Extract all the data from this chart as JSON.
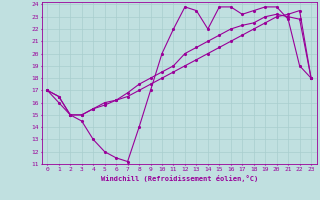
{
  "xlabel": "Windchill (Refroidissement éolien,°C)",
  "bg_color": "#c0e0e0",
  "line_color": "#990099",
  "grid_color": "#a8cece",
  "xlim": [
    -0.5,
    23.5
  ],
  "ylim": [
    11,
    24.2
  ],
  "xticks": [
    0,
    1,
    2,
    3,
    4,
    5,
    6,
    7,
    8,
    9,
    10,
    11,
    12,
    13,
    14,
    15,
    16,
    17,
    18,
    19,
    20,
    21,
    22,
    23
  ],
  "yticks": [
    11,
    12,
    13,
    14,
    15,
    16,
    17,
    18,
    19,
    20,
    21,
    22,
    23,
    24
  ],
  "line1_x": [
    0,
    1,
    2,
    3,
    4,
    5,
    6,
    7,
    8,
    9,
    10,
    11,
    12,
    13,
    14,
    15,
    16,
    17,
    18,
    19,
    20,
    21,
    22,
    23
  ],
  "line1_y": [
    17,
    16.5,
    15,
    14.5,
    13,
    12,
    11.5,
    11.2,
    14,
    17,
    20,
    22,
    23.8,
    23.5,
    22,
    23.8,
    23.8,
    23.2,
    23.5,
    23.8,
    23.8,
    22.8,
    19,
    18
  ],
  "line2_x": [
    0,
    1,
    2,
    3,
    4,
    5,
    6,
    7,
    8,
    9,
    10,
    11,
    12,
    13,
    14,
    15,
    16,
    17,
    18,
    19,
    20,
    21,
    22,
    23
  ],
  "line2_y": [
    17,
    16.5,
    15,
    15,
    15.5,
    15.8,
    16.2,
    16.8,
    17.5,
    18,
    18.5,
    19,
    20,
    20.5,
    21,
    21.5,
    22,
    22.3,
    22.5,
    23,
    23.2,
    23,
    22.8,
    18
  ],
  "line3_x": [
    0,
    1,
    2,
    3,
    4,
    5,
    6,
    7,
    8,
    9,
    10,
    11,
    12,
    13,
    14,
    15,
    16,
    17,
    18,
    19,
    20,
    21,
    22,
    23
  ],
  "line3_y": [
    17,
    16,
    15,
    15,
    15.5,
    16,
    16.2,
    16.5,
    17,
    17.5,
    18,
    18.5,
    19,
    19.5,
    20,
    20.5,
    21,
    21.5,
    22,
    22.5,
    23,
    23.2,
    23.5,
    18
  ]
}
